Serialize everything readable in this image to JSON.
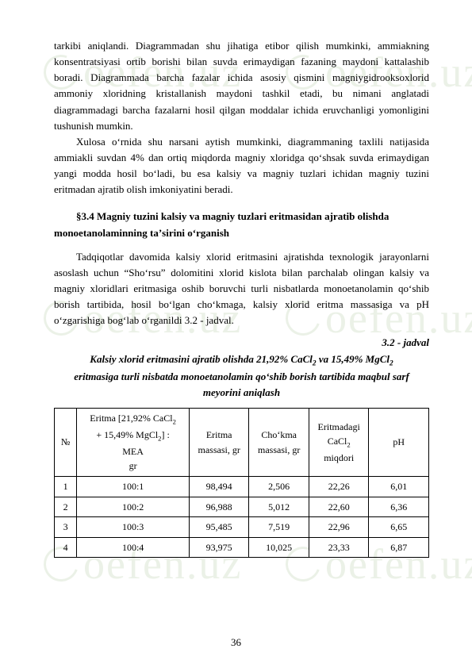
{
  "watermark": "oefen.uz",
  "paragraphs": {
    "p1": "tarkibi aniqlandi. Diagrammadan shu jihatiga etibor qilish mumkinki, ammiakning konsentratsiyasi ortib borishi bilan suvda erimaydigan fazaning maydoni kattalashib boradi. Diagrammada barcha fazalar ichida asosiy qismini magniygidrooksoxlorid ammoniy xloridning kristallanish maydoni tashkil etadi, bu nimani anglatadi diagrammadagi barcha fazalarni hosil qilgan moddalar ichida eruvchanligi yomonligini tushunish mumkin.",
    "p2": "Xulosa oʻrnida shu narsani aytish mumkinki, diagrammaning taxlili natijasida ammiakli suvdan 4% dan ortiq miqdorda magniy xloridga qoʻshsak suvda erimaydigan yangi modda hosil boʻladi, bu esa kalsiy va magniy tuzlari ichidan magniy tuzini eritmadan ajratib olish imkoniyatini beradi.",
    "p3": "Tadqiqotlar davomida kalsiy xlorid eritmasini ajratishda texnologik jarayonlarni asoslash uchun “Shoʻrsu” dolomitini xlorid kislota bilan parchalab olingan kalsiy va magniy xloridlari eritmasiga oshib boruvchi turli nisbatlarda monoetanolamin qoʻshib borish tartibida, hosil boʻlgan choʻkmaga, kalsiy xlorid eritma massasiga va pH oʻzgarishiga bogʻlab oʻrganildi  3.2 - jadval."
  },
  "section_title": "§3.4 Magniy tuzini kalsiy va magniy tuzlari eritmasidan ajratib olishda monoetanolaminning taʼsirini oʻrganish",
  "table_caption_label": "3.2 - jadval",
  "table_caption_line1": "Kalsiy xlorid eritmasini ajratib olishda 21,92% CaCl",
  "table_caption_line1b": " va 15,49% MgCl",
  "table_caption_line2": "eritmasiga turli nisbatda monoetanolamin qoʻshib borish tartibida maqbul sarf",
  "table_caption_line3": "meyorini aniqlash",
  "table": {
    "headers": {
      "no": "№",
      "composition_l1": "Eritma [21,92% CaCl",
      "composition_l2": "+ 15,49% MgCl",
      "composition_l3": "] :",
      "composition_l4": "MEA",
      "composition_l5": "gr",
      "eritma_l1": "Eritma",
      "eritma_l2": "massasi, gr",
      "chokma_l1": "Choʻkma",
      "chokma_l2": "massasi, gr",
      "cacl_l1": "Eritmadagi",
      "cacl_l2": "CaCl",
      "cacl_l3": "miqdori",
      "ph": "pH"
    },
    "rows": [
      {
        "no": "1",
        "comp": "100:1",
        "em": "98,494",
        "chm": "2,506",
        "cacl": "22,26",
        "ph": "6,01"
      },
      {
        "no": "2",
        "comp": "100:2",
        "em": "96,988",
        "chm": "5,012",
        "cacl": "22,60",
        "ph": "6,36"
      },
      {
        "no": "3",
        "comp": "100:3",
        "em": "95,485",
        "chm": "7,519",
        "cacl": "22,96",
        "ph": "6,65"
      },
      {
        "no": "4",
        "comp": "100:4",
        "em": "93,975",
        "chm": "10,025",
        "cacl": "23,33",
        "ph": "6,87"
      }
    ]
  },
  "page_number": "36"
}
